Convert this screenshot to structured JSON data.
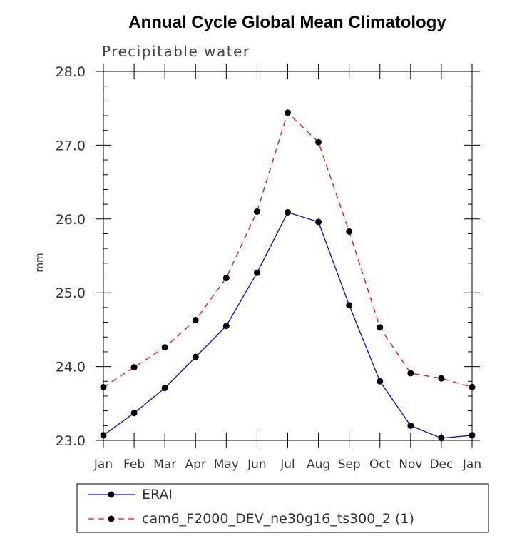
{
  "chart_data": {
    "type": "line",
    "title": "Annual Cycle Global Mean Climatology",
    "subtitle": "Precipitable water",
    "xlabel": "",
    "ylabel": "mm",
    "categories": [
      "Jan",
      "Feb",
      "Mar",
      "Apr",
      "May",
      "Jun",
      "Jul",
      "Aug",
      "Sep",
      "Oct",
      "Nov",
      "Dec",
      "Jan"
    ],
    "ylim": [
      23.0,
      28.0
    ],
    "yticks": [
      "23.0",
      "24.0",
      "25.0",
      "26.0",
      "27.0",
      "28.0"
    ],
    "grid": false,
    "legend_position": "bottom",
    "series": [
      {
        "name": "ERAI",
        "color": "#0000ff",
        "line_style": "solid",
        "marker": "circle",
        "values": [
          23.07,
          23.37,
          23.71,
          24.13,
          24.55,
          25.27,
          26.09,
          25.96,
          24.83,
          23.8,
          23.2,
          23.03,
          23.07
        ]
      },
      {
        "name": "cam6_F2000_DEV_ne30g16_ts300_2 (1)",
        "color": "#ff0000",
        "line_style": "dashed",
        "marker": "circle",
        "values": [
          23.72,
          23.99,
          24.26,
          24.63,
          25.2,
          26.1,
          27.44,
          27.04,
          25.83,
          24.53,
          23.91,
          23.84,
          23.72
        ]
      }
    ]
  }
}
